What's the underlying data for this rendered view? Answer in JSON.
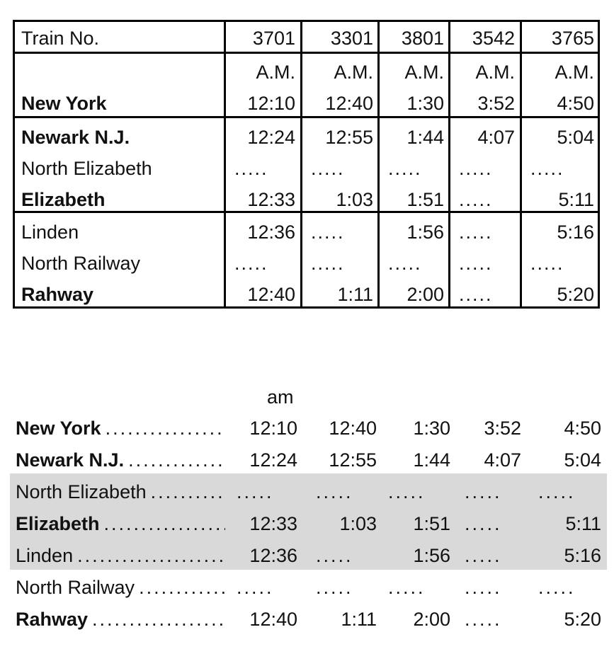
{
  "table1": {
    "header_label": "Train No.",
    "trains": [
      "3701",
      "3301",
      "3801",
      "3542",
      "3765"
    ],
    "ampm": [
      "A.M.",
      "A.M.",
      "A.M.",
      "A.M.",
      "A.M."
    ],
    "rows": [
      {
        "station": "New York",
        "bold": true,
        "times": [
          "12:10",
          "12:40",
          "1:30",
          "3:52",
          "4:50"
        ]
      },
      {
        "station": "Newark N.J.",
        "bold": true,
        "times": [
          "12:24",
          "12:55",
          "1:44",
          "4:07",
          "5:04"
        ]
      },
      {
        "station": "North Elizabeth",
        "bold": false,
        "times": [
          ".....",
          ".....",
          ".....",
          ".....",
          "....."
        ]
      },
      {
        "station": "Elizabeth",
        "bold": true,
        "times": [
          "12:33",
          "1:03",
          "1:51",
          ".....",
          "5:11"
        ]
      },
      {
        "station": "Linden",
        "bold": false,
        "times": [
          "12:36",
          ".....",
          "1:56",
          ".....",
          "5:16"
        ]
      },
      {
        "station": "North Railway",
        "bold": false,
        "times": [
          ".....",
          ".....",
          ".....",
          ".....",
          "....."
        ]
      },
      {
        "station": "Rahway",
        "bold": true,
        "times": [
          "12:40",
          "1:11",
          "2:00",
          ".....",
          "5:20"
        ]
      }
    ]
  },
  "table2": {
    "period_label": "am",
    "leader": "....................",
    "rows": [
      {
        "station": "New York",
        "bold": true,
        "times": [
          "12:10",
          "12:40",
          "1:30",
          "3:52",
          "4:50"
        ]
      },
      {
        "station": "Newark N.J.",
        "bold": true,
        "times": [
          "12:24",
          "12:55",
          "1:44",
          "4:07",
          "5:04"
        ]
      },
      {
        "station": "North Elizabeth",
        "bold": false,
        "times": [
          ".....",
          ".....",
          ".....",
          ".....",
          "....."
        ]
      },
      {
        "station": "Elizabeth",
        "bold": true,
        "times": [
          "12:33",
          "1:03",
          "1:51",
          ".....",
          "5:11"
        ]
      },
      {
        "station": "Linden",
        "bold": false,
        "times": [
          "12:36",
          "",
          "1:56",
          ".....",
          "5:16"
        ]
      },
      {
        "station": "North Railway",
        "bold": false,
        "times": [
          ".....",
          ".....",
          ".....",
          ".....",
          "....."
        ]
      },
      {
        "station": "Rahway",
        "bold": true,
        "times": [
          "12:40",
          "1:11",
          "2:00",
          ".....",
          "5:20"
        ]
      }
    ],
    "linden_second_col": ".....",
    "band_color": "#d9d9d9"
  }
}
